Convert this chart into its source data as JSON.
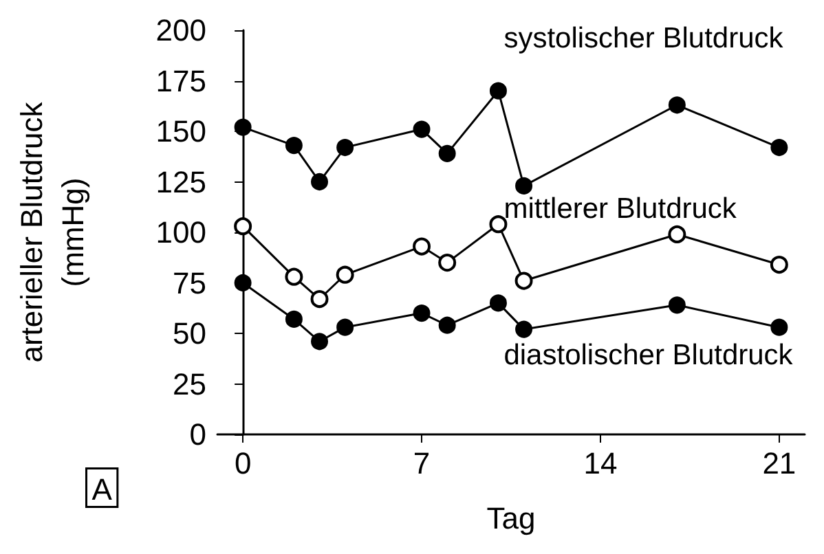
{
  "chart_data": {
    "type": "line",
    "xlabel": "Tag",
    "ylabel": "arterieller Blutdruck\n(mmHg)",
    "x": [
      0,
      2,
      3,
      4,
      7,
      8,
      10,
      11,
      17,
      21
    ],
    "series": [
      {
        "name": "systolischer Blutdruck",
        "color": "#000000",
        "marker": "circle",
        "values": [
          152,
          143,
          125,
          142,
          151,
          139,
          170,
          123,
          163,
          142
        ]
      },
      {
        "name": "mittlerer Blutdruck",
        "color": "#000000",
        "marker": "open circle",
        "values": [
          103,
          78,
          67,
          79,
          93,
          85,
          104,
          76,
          99,
          84
        ]
      },
      {
        "name": "diastolischer Blutdruck",
        "color": "#000000",
        "marker": "circle",
        "values": [
          75,
          57,
          46,
          53,
          60,
          54,
          65,
          52,
          64,
          53
        ]
      }
    ],
    "xlim": [
      -1,
      22
    ],
    "xticks": [
      0,
      7,
      14,
      21
    ],
    "ylim": [
      0,
      200
    ],
    "yticks": [
      0,
      25,
      50,
      75,
      100,
      125,
      150,
      175,
      200
    ],
    "grid": false,
    "legend": false,
    "line_style": "solid",
    "annotations": [
      "A"
    ]
  }
}
